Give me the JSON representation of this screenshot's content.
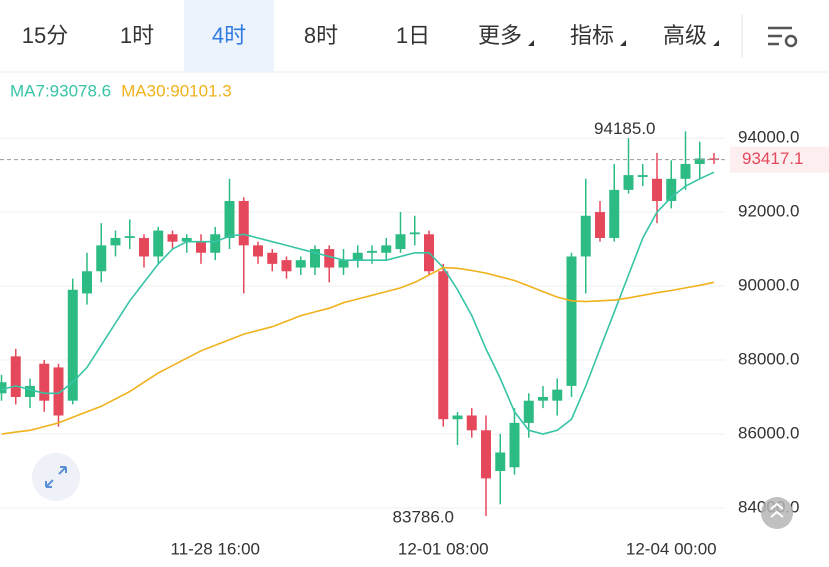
{
  "tabs": {
    "items": [
      "15分",
      "1时",
      "4时",
      "8时",
      "1日",
      "更多",
      "指标",
      "高级"
    ],
    "selected": 2
  },
  "chart_data": {
    "type": "candlestick",
    "categories": [
      null,
      null,
      null,
      null,
      null,
      null,
      null,
      null,
      null,
      null,
      null,
      null,
      null,
      null,
      null,
      "11-28 16:00",
      null,
      null,
      null,
      null,
      null,
      null,
      null,
      null,
      null,
      null,
      null,
      null,
      null,
      null,
      null,
      "12-01 08:00",
      null,
      null,
      null,
      null,
      null,
      null,
      null,
      null,
      null,
      null,
      null,
      null,
      null,
      null,
      null,
      "12-04 00:00",
      null,
      null,
      null
    ],
    "open": [
      87100,
      88100,
      87000,
      87900,
      87800,
      86900,
      89800,
      90400,
      91100,
      91300,
      91300,
      90800,
      91400,
      91200,
      91200,
      90900,
      91300,
      92300,
      91100,
      90900,
      90700,
      90500,
      90500,
      91000,
      90500,
      90700,
      90900,
      90900,
      91000,
      91400,
      91400,
      90400,
      86400,
      86500,
      86100,
      85000,
      85100,
      86300,
      86900,
      86900,
      87300,
      90800,
      92000,
      91300,
      92600,
      92950,
      92900,
      92300,
      92900,
      93300,
      93450
    ],
    "high": [
      87600,
      88300,
      87500,
      88000,
      87900,
      90200,
      90900,
      91700,
      91500,
      91800,
      91400,
      91600,
      91500,
      91400,
      91400,
      91600,
      92900,
      92400,
      91200,
      91000,
      90800,
      90800,
      91100,
      91100,
      91000,
      91100,
      91100,
      91300,
      92000,
      91900,
      91500,
      90600,
      86600,
      86700,
      86500,
      86000,
      86700,
      87100,
      87300,
      87500,
      90900,
      92900,
      92300,
      93300,
      94000,
      93300,
      93600,
      93400,
      94185,
      93900,
      93600
    ],
    "low": [
      86900,
      86800,
      86700,
      86600,
      86200,
      86800,
      89500,
      90100,
      90800,
      91000,
      90500,
      90600,
      91000,
      90900,
      90600,
      90700,
      91000,
      89800,
      90600,
      90400,
      90200,
      90300,
      90300,
      90100,
      90300,
      90500,
      90600,
      90700,
      90900,
      91100,
      90300,
      86200,
      85700,
      85900,
      83786,
      84100,
      84900,
      85900,
      86700,
      86500,
      87000,
      89800,
      91200,
      91200,
      92500,
      92700,
      91700,
      92100,
      92600,
      92900,
      93300
    ],
    "close": [
      87400,
      87000,
      87300,
      86900,
      86500,
      89900,
      90400,
      91100,
      91300,
      91350,
      90800,
      91500,
      91200,
      91300,
      90900,
      91400,
      92300,
      91100,
      90800,
      90600,
      90400,
      90700,
      91000,
      90500,
      90700,
      90900,
      90950,
      91100,
      91400,
      91450,
      90400,
      86400,
      86500,
      86100,
      84800,
      85500,
      86300,
      86900,
      87000,
      87200,
      90800,
      91900,
      91300,
      92600,
      93000,
      93000,
      92300,
      92900,
      93300,
      93450,
      93417.1
    ],
    "up_color": "#2dbb84",
    "down_color": "#e5485b",
    "ma": [
      {
        "label": "MA7:93078.6",
        "color": "#37c4a6",
        "values": [
          87200,
          87300,
          87200,
          87100,
          87100,
          87400,
          87800,
          88400,
          89000,
          89600,
          90100,
          90600,
          91000,
          91200,
          91200,
          91200,
          91350,
          91400,
          91300,
          91200,
          91100,
          91000,
          90900,
          90800,
          90700,
          90700,
          90700,
          90700,
          90800,
          90900,
          90900,
          90500,
          89900,
          89200,
          88300,
          87500,
          86600,
          86100,
          86000,
          86100,
          86400,
          87300,
          88300,
          89300,
          90300,
          91300,
          92000,
          92400,
          92700,
          92900,
          93078.6
        ]
      },
      {
        "label": "MA30:90101.3",
        "color": "#f0b21c",
        "values": [
          86000,
          86050,
          86100,
          86200,
          86300,
          86450,
          86600,
          86750,
          86950,
          87150,
          87400,
          87650,
          87850,
          88050,
          88250,
          88400,
          88550,
          88700,
          88800,
          88900,
          89050,
          89200,
          89300,
          89400,
          89550,
          89650,
          89750,
          89850,
          89950,
          90100,
          90300,
          90500,
          90480,
          90420,
          90350,
          90250,
          90150,
          90000,
          89850,
          89700,
          89600,
          89580,
          89600,
          89620,
          89680,
          89750,
          89820,
          89880,
          89950,
          90020,
          90101.3
        ]
      }
    ],
    "ylim": [
      83350,
      94760
    ],
    "yticks": [
      {
        "value": 84000,
        "label": "84000.0"
      },
      {
        "value": 86000,
        "label": "86000.0"
      },
      {
        "value": 88000,
        "label": "88000.0"
      },
      {
        "value": 90000,
        "label": "90000.0"
      },
      {
        "value": 92000,
        "label": "92000.0"
      },
      {
        "value": 94000,
        "label": "94000.0"
      }
    ],
    "grid": true,
    "current_price": 93417.1,
    "annotations": [
      {
        "index": 48,
        "value": 94185,
        "label": "94185.0"
      },
      {
        "index": 34,
        "value": 83786,
        "label": "83786.0"
      }
    ]
  }
}
